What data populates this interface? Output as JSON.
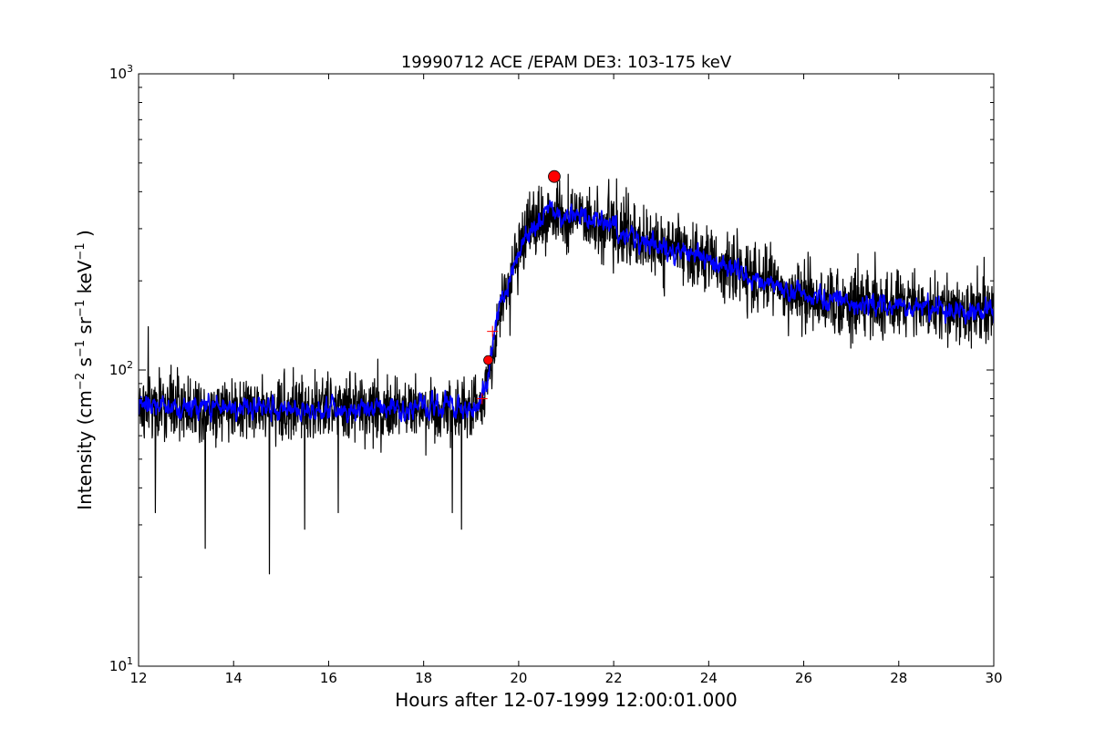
{
  "chart_data": {
    "type": "line",
    "title": "19990712 ACE /EPAM DE3: 103-175 keV",
    "xlabel": "Hours after 12-07-1999 12:00:01.000",
    "ylabel": {
      "prefix": "Intensity (cm",
      "exp1": "−2",
      "s": " s",
      "exp2": "−1",
      "sr": " sr",
      "exp3": "−1",
      "kev": " keV",
      "exp4": "−1",
      "suffix": " )"
    },
    "xlim": [
      12,
      30
    ],
    "ylim": [
      10,
      1000
    ],
    "yscale": "log",
    "grid": false,
    "xticks": [
      12,
      14,
      16,
      18,
      20,
      22,
      24,
      26,
      28,
      30
    ],
    "yticks": [
      {
        "value": 10,
        "base": "10",
        "exp": "1"
      },
      {
        "value": 100,
        "base": "10",
        "exp": "2"
      },
      {
        "value": 1000,
        "base": "10",
        "exp": "3"
      }
    ],
    "series": [
      {
        "role": "raw",
        "color": "#000000",
        "profile": [
          [
            12,
            75
          ],
          [
            19.15,
            74
          ],
          [
            19.35,
            95
          ],
          [
            19.6,
            160
          ],
          [
            20.0,
            250
          ],
          [
            20.5,
            330
          ],
          [
            21.0,
            340
          ],
          [
            21.5,
            320
          ],
          [
            22.0,
            300
          ],
          [
            22.5,
            270
          ],
          [
            23.0,
            255
          ],
          [
            24.0,
            240
          ],
          [
            25.0,
            200
          ],
          [
            26.0,
            180
          ],
          [
            27.0,
            170
          ],
          [
            28.0,
            165
          ],
          [
            29.0,
            160
          ],
          [
            30.0,
            158
          ]
        ],
        "noise_factor": 0.22,
        "points": 2400,
        "spikes_low": [
          [
            13.4,
            25
          ],
          [
            14.75,
            20.5
          ],
          [
            15.5,
            29
          ],
          [
            16.2,
            33
          ],
          [
            18.8,
            29
          ],
          [
            18.6,
            33
          ],
          [
            12.35,
            33
          ]
        ],
        "spikes_high": [
          [
            12.2,
            140
          ],
          [
            19.3,
            100
          ],
          [
            20.8,
            410
          ],
          [
            21.9,
            440
          ],
          [
            23.0,
            330
          ],
          [
            24.6,
            300
          ],
          [
            25.3,
            270
          ],
          [
            27.5,
            250
          ],
          [
            29.8,
            240
          ]
        ]
      },
      {
        "role": "smoothed",
        "color": "#0000ff",
        "profile": [
          [
            12,
            75
          ],
          [
            19.15,
            74
          ],
          [
            19.35,
            95
          ],
          [
            19.6,
            160
          ],
          [
            20.0,
            250
          ],
          [
            20.5,
            330
          ],
          [
            21.0,
            340
          ],
          [
            21.5,
            320
          ],
          [
            22.0,
            300
          ],
          [
            22.5,
            270
          ],
          [
            23.0,
            255
          ],
          [
            24.0,
            240
          ],
          [
            25.0,
            200
          ],
          [
            26.0,
            180
          ],
          [
            27.0,
            170
          ],
          [
            28.0,
            165
          ],
          [
            29.0,
            160
          ],
          [
            30.0,
            158
          ]
        ],
        "noise_factor": 0.08,
        "points": 2400
      }
    ],
    "markers": [
      {
        "x": 19.23,
        "y": 80,
        "shape": "plus",
        "color": "#ff0000"
      },
      {
        "x": 19.45,
        "y": 135,
        "shape": "plus",
        "color": "#ff0000"
      },
      {
        "x": 19.36,
        "y": 108,
        "shape": "circle",
        "color": "#ff0000",
        "size": "small"
      },
      {
        "x": 20.75,
        "y": 450,
        "shape": "circle",
        "color": "#ff0000",
        "size": "large"
      }
    ]
  }
}
